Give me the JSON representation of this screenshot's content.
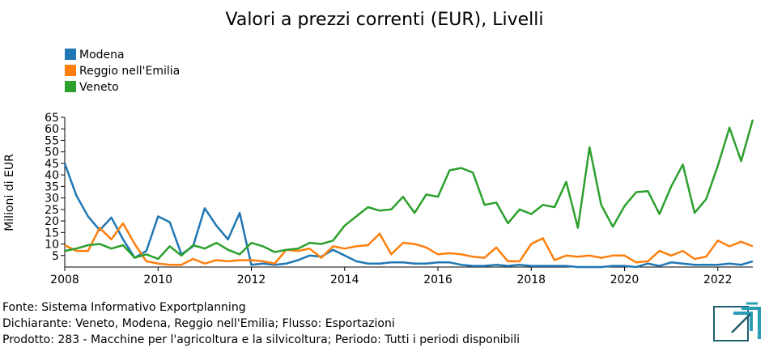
{
  "chart_data": {
    "type": "line",
    "title": "Valori a prezzi correnti (EUR), Livelli",
    "ylabel": "Milioni di EUR",
    "xlabel": "",
    "xlim": [
      2008.0,
      2022.75
    ],
    "ylim": [
      0,
      65
    ],
    "x_ticks": [
      "2008",
      "2010",
      "2012",
      "2014",
      "2016",
      "2018",
      "2020",
      "2022"
    ],
    "y_ticks": [
      "5",
      "10",
      "15",
      "20",
      "25",
      "30",
      "35",
      "40",
      "45",
      "50",
      "55",
      "60",
      "65"
    ],
    "legend_position": "top-left",
    "x": [
      2008.0,
      2008.25,
      2008.5,
      2008.75,
      2009.0,
      2009.25,
      2009.5,
      2009.75,
      2010.0,
      2010.25,
      2010.5,
      2010.75,
      2011.0,
      2011.25,
      2011.5,
      2011.75,
      2012.0,
      2012.25,
      2012.5,
      2012.75,
      2013.0,
      2013.25,
      2013.5,
      2013.75,
      2014.0,
      2014.25,
      2014.5,
      2014.75,
      2015.0,
      2015.25,
      2015.5,
      2015.75,
      2016.0,
      2016.25,
      2016.5,
      2016.75,
      2017.0,
      2017.25,
      2017.5,
      2017.75,
      2018.0,
      2018.25,
      2018.5,
      2018.75,
      2019.0,
      2019.25,
      2019.5,
      2019.75,
      2020.0,
      2020.25,
      2020.5,
      2020.75,
      2021.0,
      2021.25,
      2021.5,
      2021.75,
      2022.0,
      2022.25,
      2022.5,
      2022.75
    ],
    "series": [
      {
        "name": "Modena",
        "color": "#1f77b4",
        "values": [
          45,
          31,
          22,
          16,
          21.5,
          12,
          4,
          7,
          22,
          19.5,
          5.5,
          9,
          25.5,
          18,
          12,
          23.5,
          1,
          1.5,
          1,
          1.5,
          3,
          5,
          4.5,
          7.5,
          5,
          2.5,
          1.5,
          1.5,
          2,
          2,
          1.5,
          1.5,
          2,
          2,
          1,
          0.5,
          0.5,
          1,
          0.5,
          1,
          0.5,
          0.5,
          0.5,
          0.5,
          0,
          0,
          0,
          0.5,
          0.5,
          0,
          1.5,
          0.5,
          2,
          1.5,
          1,
          1,
          1,
          1.5,
          1,
          2.5
        ]
      },
      {
        "name": "Reggio nell'Emilia",
        "color": "#ff7f0e",
        "values": [
          9.5,
          7,
          7,
          17,
          12,
          19,
          10,
          2.5,
          1.5,
          1,
          1,
          3.5,
          1.5,
          3,
          2.5,
          3,
          3,
          2.5,
          1.5,
          7.5,
          7,
          8,
          4,
          9,
          8,
          9,
          9.5,
          14.5,
          5.5,
          10.5,
          10,
          8.5,
          5.5,
          6,
          5.5,
          4.5,
          4,
          8.5,
          2.5,
          2.5,
          10,
          12.5,
          3,
          5,
          4.5,
          5,
          4,
          5,
          5,
          2,
          2.5,
          7,
          5,
          7,
          3.5,
          4.5,
          11.5,
          9,
          11,
          9
        ]
      },
      {
        "name": "Veneto",
        "color": "#2ca02c",
        "values": [
          7,
          8,
          9.5,
          10,
          8,
          9.5,
          4,
          5.5,
          3.5,
          9,
          5,
          9.5,
          8,
          10.5,
          7.5,
          5.5,
          10.5,
          9,
          6.5,
          7.5,
          8,
          10.5,
          10,
          11.5,
          18,
          22,
          26,
          24.5,
          25,
          30.5,
          23.5,
          31.5,
          30.5,
          42,
          43,
          41,
          27,
          28,
          19,
          25,
          23,
          27,
          26,
          37,
          17,
          52,
          27,
          17.5,
          26.5,
          32.5,
          33,
          23,
          35,
          44.5,
          23.5,
          29.5,
          44,
          60.5,
          46,
          64
        ]
      }
    ]
  },
  "footer": {
    "line1": "Fonte: Sistema Informativo Exportplanning",
    "line2": "Dichiarante: Veneto, Modena, Reggio nell'Emilia; Flusso: Esportazioni",
    "line3": "Prodotto: 283 - Macchine per l'agricoltura e la silvicoltura; Periodo: Tutti i periodi disponibili"
  },
  "logo": {
    "icon": "exportplanning-logo-icon",
    "colors": [
      "#2a9db5",
      "#1f5f6e"
    ]
  }
}
